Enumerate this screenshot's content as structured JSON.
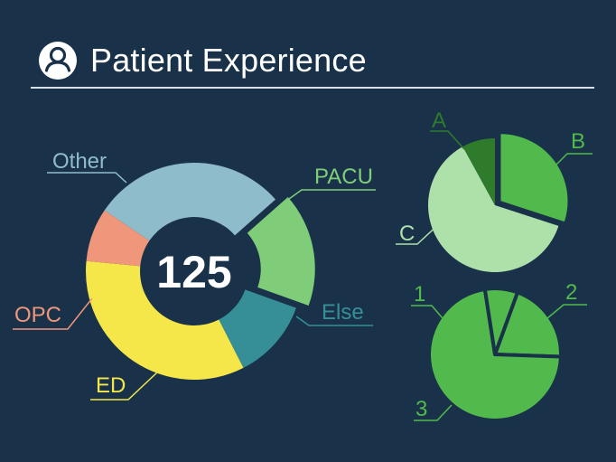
{
  "header": {
    "title": "Patient Experience",
    "icon": "user-circle-icon"
  },
  "colors": {
    "background": "#19324a",
    "other": "#8fbccb",
    "pacu": "#80cd79",
    "else": "#368f97",
    "ed": "#f5e64a",
    "opc": "#f0967b",
    "dark_green": "#2e7b2c",
    "mid_green": "#52b94c",
    "light_green": "#aee0aa"
  },
  "chart_data": [
    {
      "type": "pie",
      "variant": "donut",
      "center_value": "125",
      "categories": [
        "PACU",
        "Else",
        "ED",
        "OPC",
        "Other"
      ],
      "values": [
        17,
        12,
        34,
        8,
        29
      ],
      "label_colors": [
        "#80cd79",
        "#368f97",
        "#f5e64a",
        "#f0967b",
        "#8fbccb"
      ],
      "exploded": "PACU"
    },
    {
      "type": "pie",
      "categories": [
        "B",
        "C",
        "A"
      ],
      "values": [
        30,
        62,
        8
      ],
      "exploded": "B"
    },
    {
      "type": "pie",
      "categories": [
        "2",
        "3",
        "1"
      ],
      "values": [
        20,
        72,
        8
      ]
    }
  ]
}
